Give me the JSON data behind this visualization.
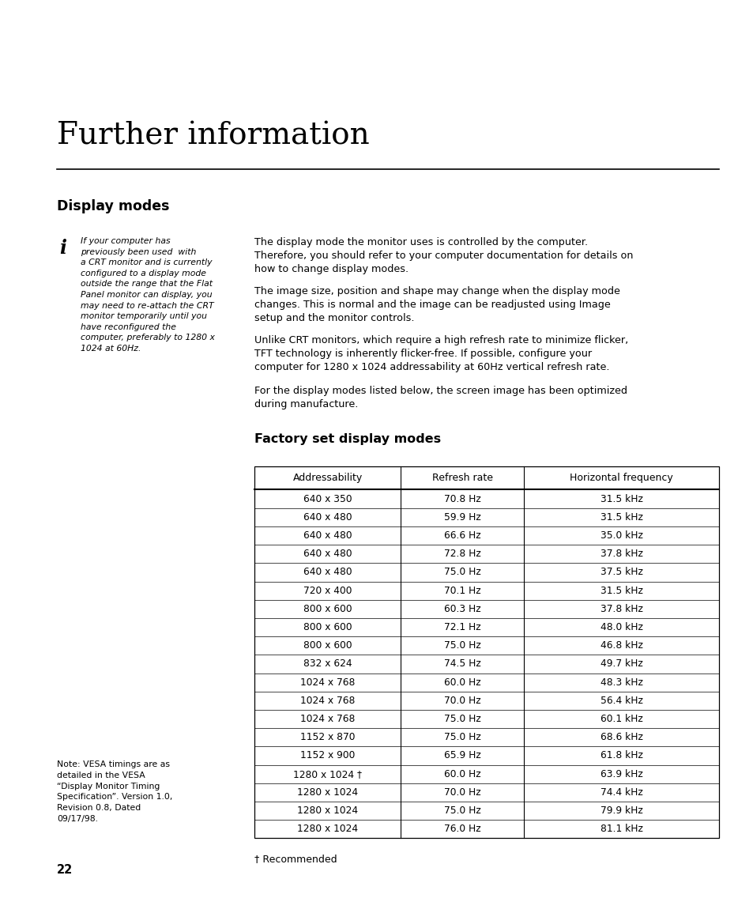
{
  "title": "Further information",
  "section_title": "Display modes",
  "italic_note": "If your computer has\npreviously been used  with\na CRT monitor and is currently\nconfigured to a display mode\noutside the range that the Flat\nPanel monitor can display, you\nmay need to re-attach the CRT\nmonitor temporarily until you\nhave reconfigured the\ncomputer, preferably to 1280 x\n1024 at 60Hz.",
  "para1": "The display mode the monitor uses is controlled by the computer.\nTherefore, you should refer to your computer documentation for details on\nhow to change display modes.",
  "para2": "The image size, position and shape may change when the display mode\nchanges. This is normal and the image can be readjusted using Image\nsetup and the monitor controls.",
  "para3": "Unlike CRT monitors, which require a high refresh rate to minimize flicker,\nTFT technology is inherently flicker-free. If possible, configure your\ncomputer for 1280 x 1024 addressability at 60Hz vertical refresh rate.",
  "para4": "For the display modes listed below, the screen image has been optimized\nduring manufacture.",
  "table_title": "Factory set display modes",
  "table_headers": [
    "Addressability",
    "Refresh rate",
    "Horizontal frequency"
  ],
  "table_rows": [
    [
      "640 x 350",
      "70.8 Hz",
      "31.5 kHz"
    ],
    [
      "640 x 480",
      "59.9 Hz",
      "31.5 kHz"
    ],
    [
      "640 x 480",
      "66.6 Hz",
      "35.0 kHz"
    ],
    [
      "640 x 480",
      "72.8 Hz",
      "37.8 kHz"
    ],
    [
      "640 x 480",
      "75.0 Hz",
      "37.5 kHz"
    ],
    [
      "720 x 400",
      "70.1 Hz",
      "31.5 kHz"
    ],
    [
      "800 x 600",
      "60.3 Hz",
      "37.8 kHz"
    ],
    [
      "800 x 600",
      "72.1 Hz",
      "48.0 kHz"
    ],
    [
      "800 x 600",
      "75.0 Hz",
      "46.8 kHz"
    ],
    [
      "832 x 624",
      "74.5 Hz",
      "49.7 kHz"
    ],
    [
      "1024 x 768",
      "60.0 Hz",
      "48.3 kHz"
    ],
    [
      "1024 x 768",
      "70.0 Hz",
      "56.4 kHz"
    ],
    [
      "1024 x 768",
      "75.0 Hz",
      "60.1 kHz"
    ],
    [
      "1152 x 870",
      "75.0 Hz",
      "68.6 kHz"
    ],
    [
      "1152 x 900",
      "65.9 Hz",
      "61.8 kHz"
    ],
    [
      "1280 x 1024 †",
      "60.0 Hz",
      "63.9 kHz"
    ],
    [
      "1280 x 1024",
      "70.0 Hz",
      "74.4 kHz"
    ],
    [
      "1280 x 1024",
      "75.0 Hz",
      "79.9 kHz"
    ],
    [
      "1280 x 1024",
      "76.0 Hz",
      "81.1 kHz"
    ]
  ],
  "footnote": "† Recommended",
  "side_note": "Note: VESA timings are as\ndetailed in the VESA\n“Display Monitor Timing\nSpecification”. Version 1.0,\nRevision 0.8, Dated\n09/17/98.",
  "page_number": "22",
  "bg_color": "#ffffff",
  "text_color": "#000000"
}
